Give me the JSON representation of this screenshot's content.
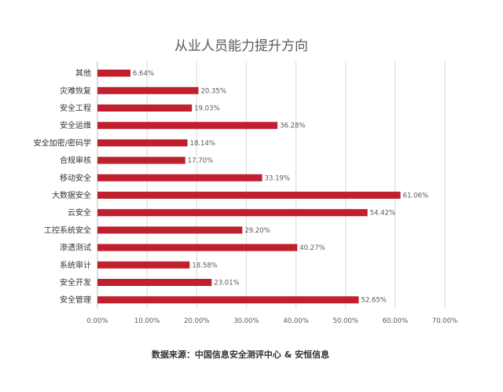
{
  "chart_data": {
    "type": "bar",
    "orientation": "horizontal",
    "title": "从业人员能力提升方向",
    "categories": [
      "其他",
      "灾难恢复",
      "安全工程",
      "安全运维",
      "安全加密/密码学",
      "合规审核",
      "移动安全",
      "大数据安全",
      "云安全",
      "工控系统安全",
      "渗透测试",
      "系统审计",
      "安全开发",
      "安全管理"
    ],
    "values": [
      6.64,
      20.35,
      19.03,
      36.28,
      18.14,
      17.7,
      33.19,
      61.06,
      54.42,
      29.2,
      40.27,
      18.58,
      23.01,
      52.65
    ],
    "value_labels": [
      "6.64%",
      "20.35%",
      "19.03%",
      "36.28%",
      "18.14%",
      "17.70%",
      "33.19%",
      "61.06%",
      "54.42%",
      "29.20%",
      "40.27%",
      "18.58%",
      "23.01%",
      "52.65%"
    ],
    "xlim": [
      0,
      70
    ],
    "xticks": [
      "0.00%",
      "10.00%",
      "20.00%",
      "30.00%",
      "40.00%",
      "50.00%",
      "60.00%",
      "70.00%"
    ],
    "xlabel": "",
    "ylabel": "",
    "grid": true,
    "bar_color": "#c0202d"
  },
  "source_note": "数据来源：中国信息安全测评中心 & 安恒信息"
}
